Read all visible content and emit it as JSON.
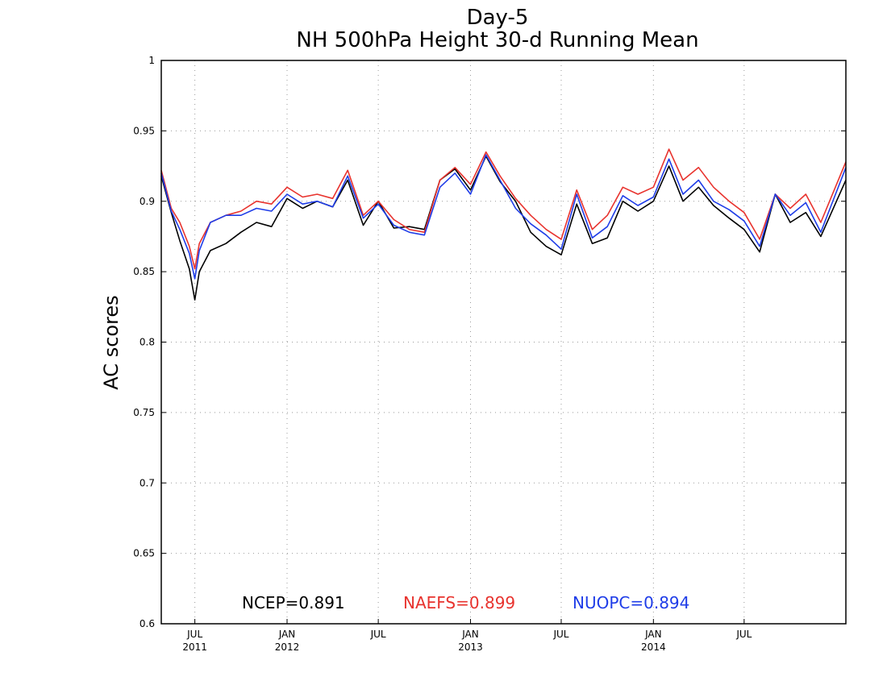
{
  "chart_data": {
    "type": "line",
    "title": "Day-5",
    "subtitle": "NH 500hPa Height 30-d Running Mean",
    "xlabel": "",
    "ylabel": "AC scores",
    "ylim": [
      0.6,
      1.0
    ],
    "xlim": [
      "2011-04-25",
      "2015-01-20"
    ],
    "grid": true,
    "y_ticks": [
      "0.6",
      "0.65",
      "0.7",
      "0.75",
      "0.8",
      "0.85",
      "0.9",
      "0.95",
      "1"
    ],
    "x_ticks": [
      {
        "date": "2011-07-01",
        "month": "JUL",
        "year": "2011"
      },
      {
        "date": "2012-01-01",
        "month": "JAN",
        "year": "2012"
      },
      {
        "date": "2012-07-01",
        "month": "JUL",
        "year": ""
      },
      {
        "date": "2013-01-01",
        "month": "JAN",
        "year": "2013"
      },
      {
        "date": "2013-07-01",
        "month": "JUL",
        "year": ""
      },
      {
        "date": "2014-01-01",
        "month": "JAN",
        "year": "2014"
      },
      {
        "date": "2014-07-01",
        "month": "JUL",
        "year": ""
      }
    ],
    "legend": [
      {
        "text": "NCEP=0.891",
        "color": "#000000"
      },
      {
        "text": "NAEFS=0.899",
        "color": "#e8332e"
      },
      {
        "text": "NUOPC=0.894",
        "color": "#1f3de8"
      }
    ],
    "x": [
      "2011-04-25",
      "2011-05-15",
      "2011-06-01",
      "2011-06-20",
      "2011-07-01",
      "2011-07-10",
      "2011-08-01",
      "2011-09-01",
      "2011-10-01",
      "2011-11-01",
      "2011-12-01",
      "2012-01-01",
      "2012-02-01",
      "2012-03-01",
      "2012-04-01",
      "2012-05-01",
      "2012-06-01",
      "2012-07-01",
      "2012-08-01",
      "2012-09-01",
      "2012-10-01",
      "2012-11-01",
      "2012-12-01",
      "2013-01-01",
      "2013-02-01",
      "2013-03-01",
      "2013-04-01",
      "2013-05-01",
      "2013-06-01",
      "2013-07-01",
      "2013-08-01",
      "2013-09-01",
      "2013-10-01",
      "2013-11-01",
      "2013-12-01",
      "2014-01-01",
      "2014-02-01",
      "2014-03-01",
      "2014-04-01",
      "2014-05-01",
      "2014-06-01",
      "2014-07-01",
      "2014-08-01",
      "2014-09-01",
      "2014-10-01",
      "2014-11-01",
      "2014-12-01",
      "2015-01-20"
    ],
    "series": [
      {
        "name": "NCEP",
        "color": "#000000",
        "values": [
          0.918,
          0.892,
          0.872,
          0.852,
          0.83,
          0.85,
          0.865,
          0.87,
          0.878,
          0.885,
          0.882,
          0.902,
          0.895,
          0.9,
          0.896,
          0.915,
          0.883,
          0.9,
          0.881,
          0.882,
          0.88,
          0.915,
          0.923,
          0.908,
          0.932,
          0.914,
          0.9,
          0.878,
          0.868,
          0.862,
          0.898,
          0.87,
          0.874,
          0.9,
          0.893,
          0.9,
          0.925,
          0.9,
          0.91,
          0.897,
          0.888,
          0.88,
          0.864,
          0.905,
          0.885,
          0.892,
          0.875,
          0.915
        ]
      },
      {
        "name": "NAEFS",
        "color": "#e8332e",
        "values": [
          0.922,
          0.895,
          0.885,
          0.868,
          0.852,
          0.87,
          0.885,
          0.89,
          0.893,
          0.9,
          0.898,
          0.91,
          0.903,
          0.905,
          0.902,
          0.922,
          0.89,
          0.9,
          0.887,
          0.88,
          0.878,
          0.915,
          0.924,
          0.912,
          0.935,
          0.918,
          0.902,
          0.89,
          0.88,
          0.873,
          0.908,
          0.88,
          0.89,
          0.91,
          0.905,
          0.91,
          0.937,
          0.915,
          0.924,
          0.91,
          0.9,
          0.892,
          0.873,
          0.905,
          0.895,
          0.905,
          0.885,
          0.928
        ]
      },
      {
        "name": "NUOPC",
        "color": "#1f3de8",
        "values": [
          0.92,
          0.893,
          0.88,
          0.863,
          0.845,
          0.865,
          0.885,
          0.89,
          0.89,
          0.895,
          0.893,
          0.905,
          0.898,
          0.9,
          0.896,
          0.918,
          0.888,
          0.898,
          0.883,
          0.878,
          0.876,
          0.91,
          0.92,
          0.905,
          0.933,
          0.915,
          0.895,
          0.884,
          0.876,
          0.866,
          0.905,
          0.874,
          0.882,
          0.904,
          0.897,
          0.903,
          0.93,
          0.905,
          0.915,
          0.9,
          0.894,
          0.886,
          0.868,
          0.905,
          0.89,
          0.899,
          0.878,
          0.924
        ]
      }
    ]
  }
}
